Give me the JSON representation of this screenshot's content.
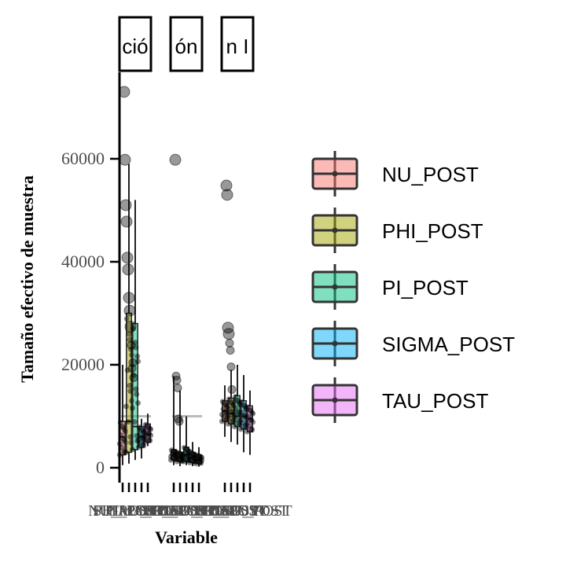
{
  "chart_data": {
    "type": "boxplot",
    "ylabel": "Tamaño efectivo de muestra",
    "xlabel": "Variable",
    "ylim": [
      -2500,
      77000
    ],
    "yticks": [
      0,
      20000,
      40000,
      60000
    ],
    "ytick_labels": [
      "0",
      "20000",
      "40000",
      "60000"
    ],
    "reference_line": 10000,
    "grid": false,
    "legend_position": "right",
    "facets": [
      {
        "strip_label": "ció",
        "boxes": [
          {
            "series": "NU_POST",
            "q1": 2500,
            "median": 6000,
            "q3": 9000,
            "lower": 500,
            "upper": 20000
          },
          {
            "series": "PHI_POST",
            "q1": 3000,
            "median": 9000,
            "q3": 30000,
            "lower": 800,
            "upper": 59000
          },
          {
            "series": "PI_POST",
            "q1": 3500,
            "median": 8000,
            "q3": 28000,
            "lower": 1500,
            "upper": 52000
          },
          {
            "series": "SIGMA_POST",
            "q1": 4000,
            "median": 6000,
            "q3": 8000,
            "lower": 1800,
            "upper": 9500
          },
          {
            "series": "TAU_POST",
            "q1": 5000,
            "median": 6500,
            "q3": 8500,
            "lower": 4200,
            "upper": 10500
          }
        ],
        "outliers": [
          73000,
          59800,
          51000,
          47800,
          40800,
          38500,
          33000,
          30500,
          27400,
          23800,
          19300,
          20400,
          17500
        ]
      },
      {
        "strip_label": "ón",
        "boxes": [
          {
            "series": "NU_POST",
            "q1": 1500,
            "median": 2500,
            "q3": 3500,
            "lower": 500,
            "upper": 17800
          },
          {
            "series": "PHI_POST",
            "q1": 1200,
            "median": 2000,
            "q3": 3000,
            "lower": 300,
            "upper": 15000
          },
          {
            "series": "PI_POST",
            "q1": 1200,
            "median": 2500,
            "q3": 4000,
            "lower": 500,
            "upper": 10000
          },
          {
            "series": "SIGMA_POST",
            "q1": 1000,
            "median": 2000,
            "q3": 3000,
            "lower": 300,
            "upper": 5000
          },
          {
            "series": "TAU_POST",
            "q1": 800,
            "median": 1500,
            "q3": 2500,
            "lower": 200,
            "upper": 4000
          }
        ],
        "outliers": [
          59800,
          17800,
          17000,
          15500,
          9500,
          9000
        ]
      },
      {
        "strip_label": "n I",
        "boxes": [
          {
            "series": "NU_POST",
            "q1": 9000,
            "median": 11000,
            "q3": 13000,
            "lower": 6000,
            "upper": 16000
          },
          {
            "series": "PHI_POST",
            "q1": 8500,
            "median": 10500,
            "q3": 13500,
            "lower": 5000,
            "upper": 19000
          },
          {
            "series": "PI_POST",
            "q1": 8000,
            "median": 10000,
            "q3": 14000,
            "lower": 4500,
            "upper": 20000
          },
          {
            "series": "SIGMA_POST",
            "q1": 7500,
            "median": 10000,
            "q3": 13000,
            "lower": 3000,
            "upper": 18000
          },
          {
            "series": "TAU_POST",
            "q1": 7000,
            "median": 9500,
            "q3": 12000,
            "lower": 2500,
            "upper": 15000
          }
        ],
        "outliers": [
          54800,
          53000,
          27200,
          26000,
          24200,
          22800,
          19600,
          15200
        ]
      }
    ],
    "x_tick_labels": [
      "NU_POST",
      "PHI_POST",
      "PI_POST",
      "SIGMA_POST",
      "TAU_POST"
    ]
  },
  "legend": {
    "items": [
      {
        "label": "NU_POST",
        "color": "#F8766D"
      },
      {
        "label": "PHI_POST",
        "color": "#A3A500"
      },
      {
        "label": "PI_POST",
        "color": "#00BF7D"
      },
      {
        "label": "SIGMA_POST",
        "color": "#00B0F6"
      },
      {
        "label": "TAU_POST",
        "color": "#E76BF3"
      }
    ]
  }
}
